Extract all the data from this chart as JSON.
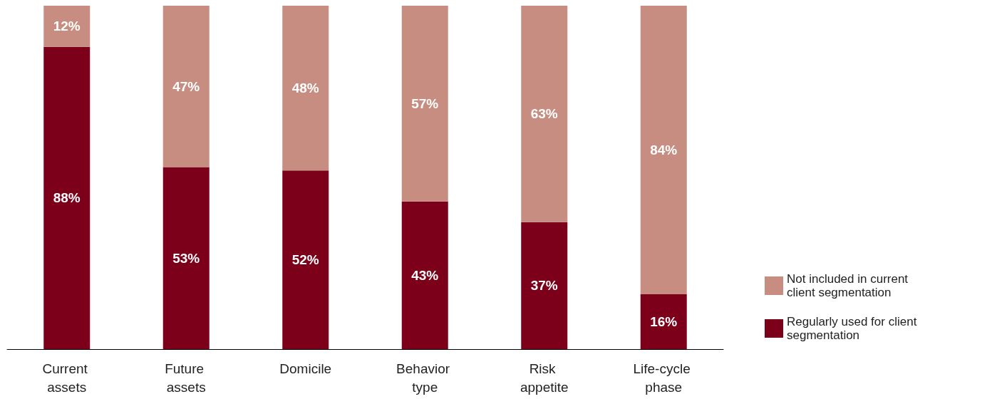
{
  "chart_data": {
    "type": "bar",
    "stacked": true,
    "categories": [
      "Current assets",
      "Future assets",
      "Domicile",
      "Behavior type",
      "Risk appetite",
      "Life-cycle phase"
    ],
    "series": [
      {
        "name": "Regularly used for client segmentation",
        "color": "#7c0019",
        "values": [
          88,
          53,
          52,
          43,
          37,
          16
        ],
        "value_labels": [
          "88%",
          "53%",
          "52%",
          "43%",
          "37%",
          "16%"
        ]
      },
      {
        "name": "Not included in current client segmentation",
        "color": "#c68d80",
        "values": [
          12,
          47,
          48,
          57,
          63,
          84
        ],
        "value_labels": [
          "12%",
          "47%",
          "48%",
          "57%",
          "63%",
          "84%"
        ]
      }
    ],
    "legend": "right bottom"
  }
}
